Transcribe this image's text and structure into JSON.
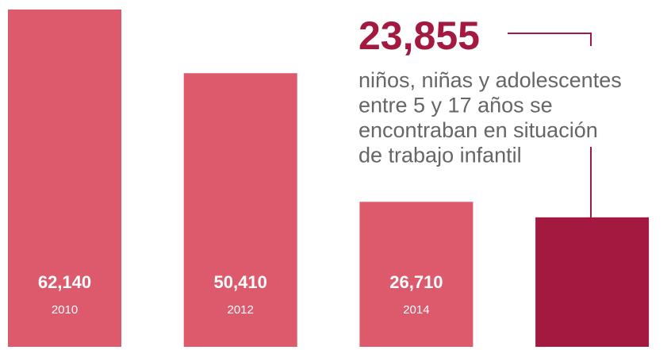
{
  "chart_data": {
    "type": "bar",
    "categories": [
      "2010",
      "2012",
      "2014",
      null
    ],
    "values": [
      62140,
      50410,
      26710,
      23855
    ],
    "value_labels": [
      "62,140",
      "50,410",
      "26,710",
      "23,855"
    ],
    "colors": [
      "#dc5a6c",
      "#dc5a6c",
      "#dc5a6c",
      "#a3193f"
    ],
    "annotation": [
      "niños, niñas y adolescentes",
      "entre 5 y 17 años se",
      "encontraban en situación",
      "de trabajo infantil"
    ]
  }
}
